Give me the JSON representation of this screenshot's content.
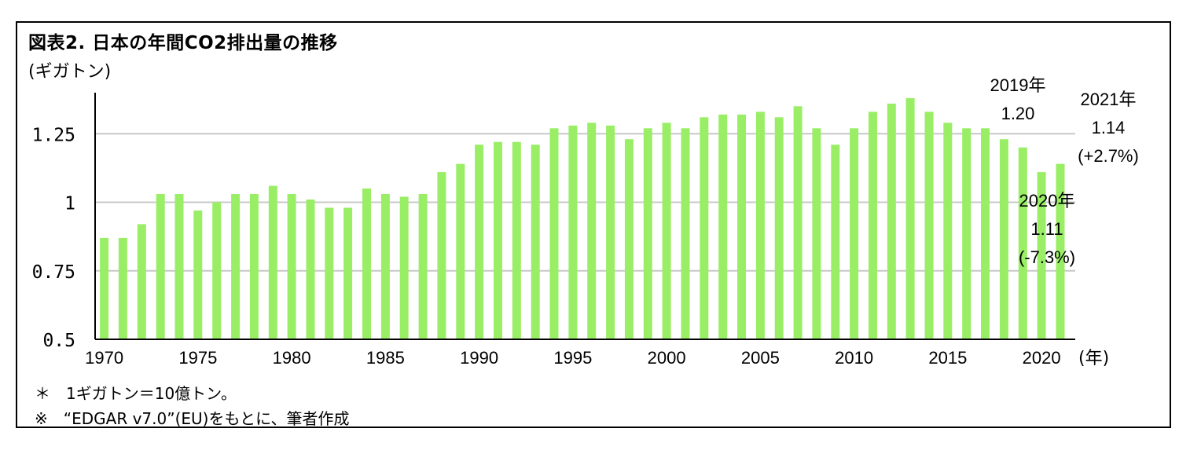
{
  "title": "図表2. 日本の年間CO2排出量の推移",
  "unit_label": "(ギガトン)",
  "notes": [
    "＊　1ギガトン＝10億トン。",
    "※　“EDGAR v7.0”(EU)をもとに、筆者作成"
  ],
  "colors": {
    "bar": "#99ee66",
    "grid": "#c8c8c8",
    "axis": "#000000"
  },
  "chart_data": {
    "type": "bar",
    "xlabel_unit": "(年)",
    "ylim": [
      0.5,
      1.4
    ],
    "y_ticks": [
      0.5,
      0.75,
      1,
      1.25
    ],
    "y_tick_labels": [
      "0.5",
      "0.75",
      "1",
      "1.25"
    ],
    "x_tick_labels": [
      "1970",
      "1975",
      "1980",
      "1985",
      "1990",
      "1995",
      "2000",
      "2005",
      "2010",
      "2015",
      "2020"
    ],
    "grid": "horizontal",
    "x": [
      1970,
      1971,
      1972,
      1973,
      1974,
      1975,
      1976,
      1977,
      1978,
      1979,
      1980,
      1981,
      1982,
      1983,
      1984,
      1985,
      1986,
      1987,
      1988,
      1989,
      1990,
      1991,
      1992,
      1993,
      1994,
      1995,
      1996,
      1997,
      1998,
      1999,
      2000,
      2001,
      2002,
      2003,
      2004,
      2005,
      2006,
      2007,
      2008,
      2009,
      2010,
      2011,
      2012,
      2013,
      2014,
      2015,
      2016,
      2017,
      2018,
      2019,
      2020,
      2021
    ],
    "values": [
      0.87,
      0.87,
      0.92,
      1.03,
      1.03,
      0.97,
      1.0,
      1.03,
      1.03,
      1.06,
      1.03,
      1.01,
      0.98,
      0.98,
      1.05,
      1.03,
      1.02,
      1.03,
      1.11,
      1.14,
      1.21,
      1.22,
      1.22,
      1.21,
      1.27,
      1.28,
      1.29,
      1.28,
      1.23,
      1.27,
      1.29,
      1.27,
      1.31,
      1.32,
      1.32,
      1.33,
      1.31,
      1.35,
      1.27,
      1.21,
      1.27,
      1.33,
      1.36,
      1.38,
      1.33,
      1.29,
      1.27,
      1.27,
      1.23,
      1.2,
      1.11,
      1.14
    ],
    "annotations": [
      {
        "lines": [
          "2019年",
          "1.20"
        ]
      },
      {
        "lines": [
          "2021年",
          "1.14",
          "(+2.7%)"
        ]
      },
      {
        "lines": [
          "2020年",
          "1.11",
          "(-7.3%)"
        ]
      }
    ]
  }
}
